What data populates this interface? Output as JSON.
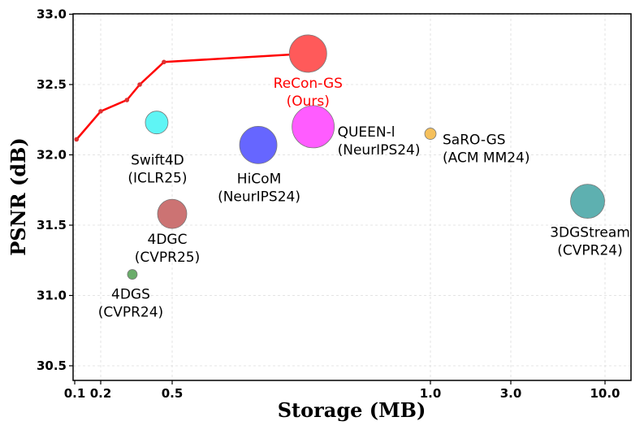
{
  "chart_data": {
    "type": "scatter",
    "title": "",
    "xlabel": "Storage (MB)",
    "ylabel": "PSNR (dB)",
    "ylim": [
      30.4,
      33.0
    ],
    "x_ticks": [
      {
        "label": "0.1",
        "value": 0.1
      },
      {
        "label": "0.2",
        "value": 0.2
      },
      {
        "label": "0.5",
        "value": 0.5
      },
      {
        "label": "1.0",
        "value": 1.0
      },
      {
        "label": "3.0",
        "value": 3.0
      },
      {
        "label": "10.0",
        "value": 10.0
      }
    ],
    "y_ticks": [
      "30.5",
      "31.0",
      "31.5",
      "32.0",
      "32.5",
      "33.0"
    ],
    "grid": true,
    "curve": {
      "name": "ReCon-GS",
      "color": "#ff0000",
      "points": [
        {
          "x": 0.105,
          "y": 32.11
        },
        {
          "x": 0.2,
          "y": 32.31
        },
        {
          "x": 0.28,
          "y": 32.39
        },
        {
          "x": 0.33,
          "y": 32.5
        },
        {
          "x": 0.45,
          "y": 32.66
        },
        {
          "x": 0.72,
          "y": 32.72
        }
      ]
    },
    "points": [
      {
        "name": "ReCon-GS",
        "label_lines": [
          "ReCon-GS",
          "(Ours)"
        ],
        "x": 0.72,
        "y": 32.72,
        "size": 23,
        "color": "#ff5a5a",
        "highlight": true
      },
      {
        "name": "Swift4D",
        "label_lines": [
          "Swift4D",
          "(ICLR25)"
        ],
        "x": 0.41,
        "y": 32.23,
        "size": 14,
        "color": "#5ff5f5",
        "highlight": false
      },
      {
        "name": "HiCoM",
        "label_lines": [
          "HiCoM",
          "(NeurIPS24)"
        ],
        "x": 0.63,
        "y": 32.07,
        "size": 23,
        "color": "#6666ff",
        "highlight": false
      },
      {
        "name": "QUEEN-l",
        "label_lines": [
          "QUEEN-l",
          "(NeurIPS24)"
        ],
        "x": 0.73,
        "y": 32.2,
        "size": 26,
        "color": "#ff5cff",
        "highlight": false
      },
      {
        "name": "SaRO-GS",
        "label_lines": [
          "SaRO-GS",
          "(ACM MM24)"
        ],
        "x": 1.0,
        "y": 32.15,
        "size": 7,
        "color": "#f5c05c",
        "highlight": false
      },
      {
        "name": "3DGStream",
        "label_lines": [
          "3DGStream",
          "(CVPR24)"
        ],
        "x": 8.0,
        "y": 31.67,
        "size": 21,
        "color": "#5eb0b0",
        "highlight": false
      },
      {
        "name": "4DGC",
        "label_lines": [
          "4DGC",
          "(CVPR25)"
        ],
        "x": 0.5,
        "y": 31.58,
        "size": 18,
        "color": "#cc7373",
        "highlight": false
      },
      {
        "name": "4DGS",
        "label_lines": [
          "4DGS",
          "(CVPR24)"
        ],
        "x": 0.3,
        "y": 31.15,
        "size": 6,
        "color": "#6aac6a",
        "highlight": false
      }
    ]
  }
}
